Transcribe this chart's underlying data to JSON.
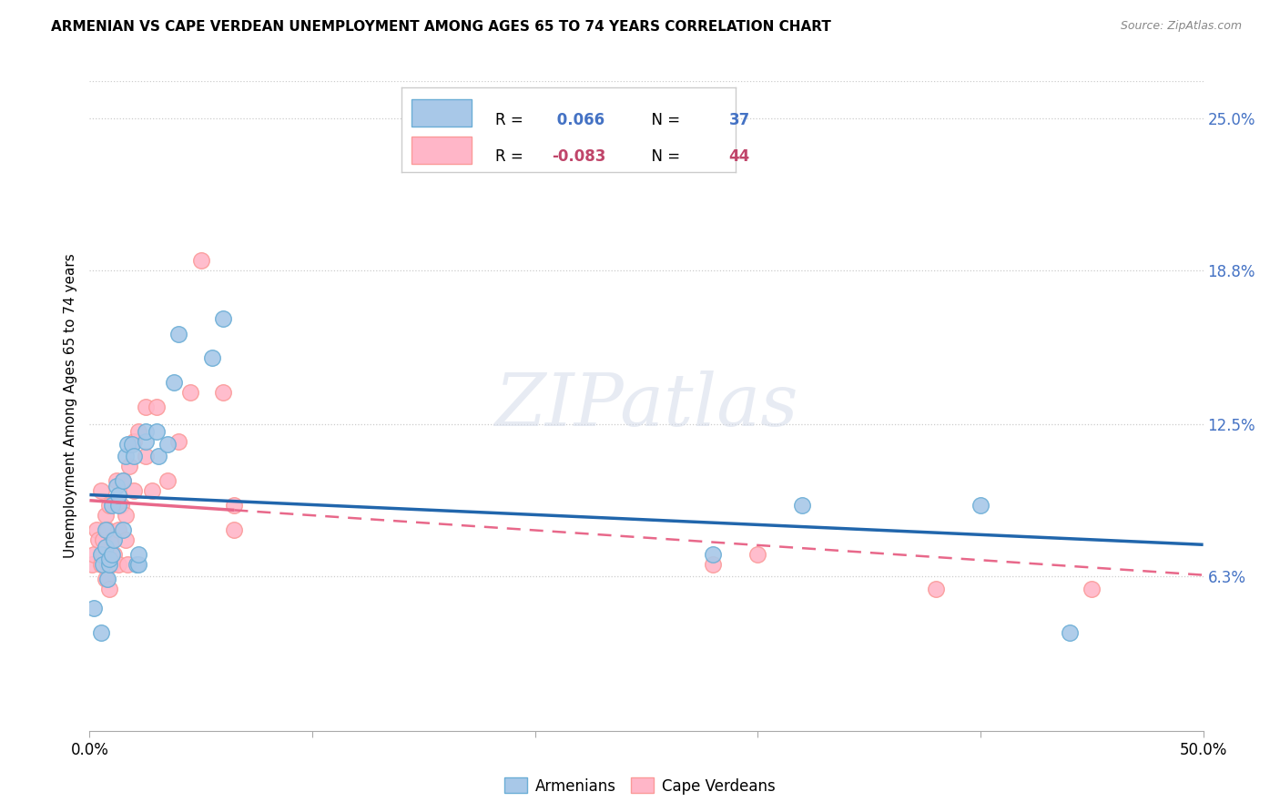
{
  "title": "ARMENIAN VS CAPE VERDEAN UNEMPLOYMENT AMONG AGES 65 TO 74 YEARS CORRELATION CHART",
  "source": "Source: ZipAtlas.com",
  "ylabel": "Unemployment Among Ages 65 to 74 years",
  "xlim": [
    0.0,
    0.5
  ],
  "ylim": [
    0.0,
    0.265
  ],
  "armenian_R": 0.066,
  "armenian_N": 37,
  "capeverdean_R": -0.083,
  "capeverdean_N": 44,
  "armenian_color": "#a8c8e8",
  "armenian_edge_color": "#6baed6",
  "capeverdean_color": "#ffb6c8",
  "capeverdean_edge_color": "#fb9a99",
  "armenian_line_color": "#2166ac",
  "capeverdean_line_color": "#e8688a",
  "ytick_labels_right": [
    "25.0%",
    "18.8%",
    "12.5%",
    "6.3%"
  ],
  "ytick_vals_right": [
    0.25,
    0.188,
    0.125,
    0.063
  ],
  "watermark_text": "ZIPatlas",
  "armenian_x": [
    0.002,
    0.005,
    0.005,
    0.006,
    0.007,
    0.007,
    0.008,
    0.009,
    0.009,
    0.01,
    0.01,
    0.011,
    0.012,
    0.013,
    0.013,
    0.015,
    0.015,
    0.016,
    0.017,
    0.019,
    0.02,
    0.021,
    0.022,
    0.022,
    0.025,
    0.025,
    0.03,
    0.031,
    0.035,
    0.038,
    0.04,
    0.055,
    0.06,
    0.28,
    0.32,
    0.4,
    0.44
  ],
  "armenian_y": [
    0.05,
    0.04,
    0.072,
    0.068,
    0.075,
    0.082,
    0.062,
    0.068,
    0.07,
    0.072,
    0.092,
    0.078,
    0.1,
    0.092,
    0.096,
    0.082,
    0.102,
    0.112,
    0.117,
    0.117,
    0.112,
    0.068,
    0.068,
    0.072,
    0.118,
    0.122,
    0.122,
    0.112,
    0.117,
    0.142,
    0.162,
    0.152,
    0.168,
    0.072,
    0.092,
    0.092,
    0.04
  ],
  "capeverdean_x": [
    0.001,
    0.002,
    0.003,
    0.004,
    0.005,
    0.005,
    0.006,
    0.006,
    0.007,
    0.007,
    0.008,
    0.008,
    0.009,
    0.009,
    0.01,
    0.01,
    0.011,
    0.012,
    0.013,
    0.013,
    0.014,
    0.015,
    0.016,
    0.016,
    0.017,
    0.018,
    0.02,
    0.02,
    0.022,
    0.025,
    0.025,
    0.028,
    0.03,
    0.035,
    0.04,
    0.045,
    0.05,
    0.06,
    0.065,
    0.065,
    0.28,
    0.3,
    0.38,
    0.45
  ],
  "capeverdean_y": [
    0.068,
    0.072,
    0.082,
    0.078,
    0.068,
    0.098,
    0.072,
    0.078,
    0.062,
    0.088,
    0.068,
    0.082,
    0.058,
    0.092,
    0.068,
    0.078,
    0.072,
    0.102,
    0.068,
    0.082,
    0.092,
    0.102,
    0.078,
    0.088,
    0.068,
    0.108,
    0.098,
    0.118,
    0.122,
    0.112,
    0.132,
    0.098,
    0.132,
    0.102,
    0.118,
    0.138,
    0.192,
    0.138,
    0.092,
    0.082,
    0.068,
    0.072,
    0.058,
    0.058
  ],
  "background_color": "#ffffff",
  "grid_color": "#cccccc",
  "legend_text_blue": "#2166ac",
  "legend_text_pink": "#c0456a",
  "legend_r_color_blue": "#4472c4",
  "legend_r_color_pink": "#e05070",
  "bottom_legend_labels": [
    "Armenians",
    "Cape Verdeans"
  ]
}
